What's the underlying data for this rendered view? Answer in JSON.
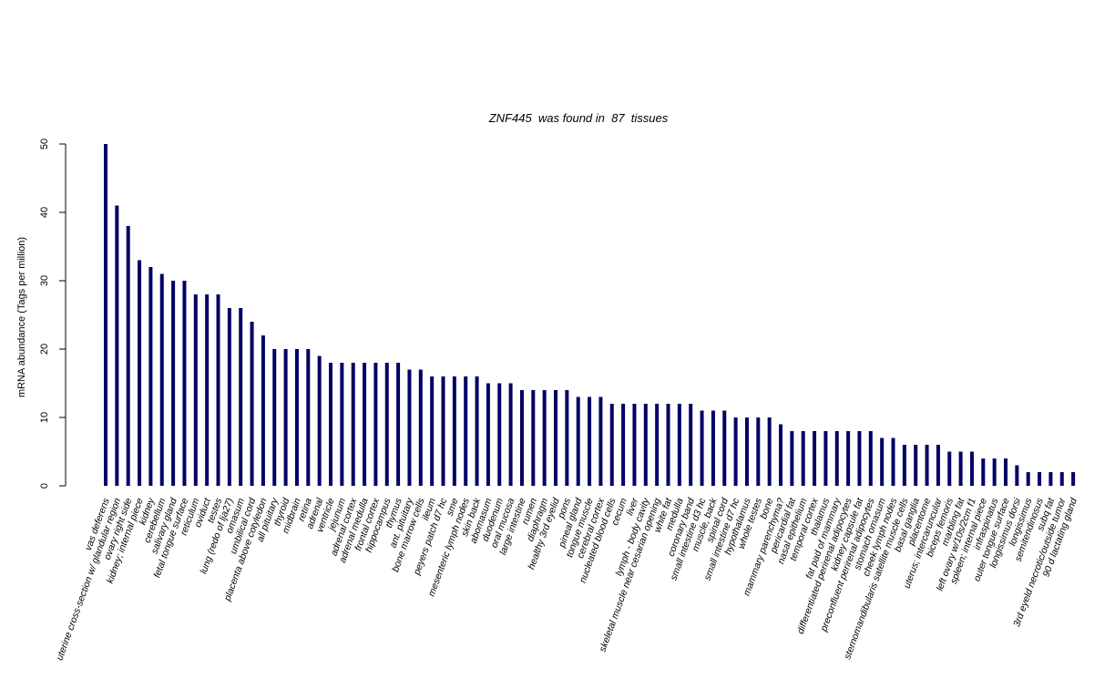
{
  "chart_data": {
    "type": "bar",
    "title": "ZNF445  was found in  87  tissues",
    "ylabel": "mRNA abundance (Tags per million)",
    "xlabel": "",
    "ylim": [
      0,
      50
    ],
    "yticks": [
      0,
      10,
      20,
      30,
      40,
      50
    ],
    "grid": false,
    "bar_color": "#000066",
    "categories": [
      "vas deferens",
      "uterine cross-section w/ glandular region",
      "ovary right side",
      "kidney; internal piece",
      "kidney",
      "cerebellum",
      "salivary gland",
      "fetal tongue surface",
      "reticulum",
      "oviduct",
      "testes",
      "lung (redo of lja27)",
      "omasum",
      "umbilical cord",
      "placenta above cotyledon",
      "all pituitary",
      "thyroid",
      "midbrain",
      "retina",
      "adrenal",
      "ventricle",
      "jejunum",
      "adrenal cortex",
      "adrenal medulla",
      "frontal cortex",
      "hippocampus",
      "thymus",
      "ant. pituitary",
      "bone marrow cells",
      "ileum",
      "peyers patch d7 hc",
      "sme",
      "mesenteric lymph nodes",
      "skin back",
      "abomasum",
      "duodenum",
      "oral mucosa",
      "large intestine",
      "rumen",
      "diaphragm",
      "healthy 3rd eyelid",
      "pons",
      "pineal gland",
      "tongue muscle",
      "cerebral cortex",
      "nucleated blood cells",
      "cecum",
      "liver",
      "lymph - body cavity",
      "skeletal muscle near cesarian opening",
      "white fat",
      "medulla",
      "coronary band",
      "small intestine d3 hc",
      "muscle, back",
      "spinal cord",
      "small intestine d7 hc",
      "hypothalamus",
      "whole testes",
      "bone",
      "mammary parenchyma?",
      "pericardial fat",
      "nasal epithelium",
      "temporal cortex",
      "thalamus",
      "fat pad of mammary",
      "differentiated perirenal adipocytes",
      "kidney capsule fat",
      "preconfluent perirenal adipocytes",
      "stomach omasum",
      "cheek lymph nodes",
      "sternomandibularis satellite muscle cells",
      "basal ganglia",
      "placentome",
      "uterus; intercaruncular",
      "biceps femoris",
      "marbling fat",
      "left ovary w/10s/2cm f1",
      "spleen; internal piece",
      "infraspinatus",
      "outer tongue surface",
      "longissimus dorsi",
      "longissimus",
      "semitendinosus",
      "subq fat",
      "3rd eyeld necrotic/outside tumor",
      "90 d lactating gland"
    ],
    "values": [
      50,
      41,
      38,
      33,
      32,
      31,
      30,
      30,
      28,
      28,
      28,
      26,
      26,
      24,
      22,
      20,
      20,
      20,
      20,
      19,
      18,
      18,
      18,
      18,
      18,
      18,
      18,
      17,
      17,
      16,
      16,
      16,
      16,
      16,
      15,
      15,
      15,
      14,
      14,
      14,
      14,
      14,
      13,
      13,
      13,
      12,
      12,
      12,
      12,
      12,
      12,
      12,
      12,
      11,
      11,
      11,
      10,
      10,
      10,
      10,
      9,
      8,
      8,
      8,
      8,
      8,
      8,
      8,
      8,
      7,
      7,
      6,
      6,
      6,
      6,
      5,
      5,
      5,
      4,
      4,
      4,
      3,
      2,
      2,
      2,
      2,
      2
    ]
  }
}
